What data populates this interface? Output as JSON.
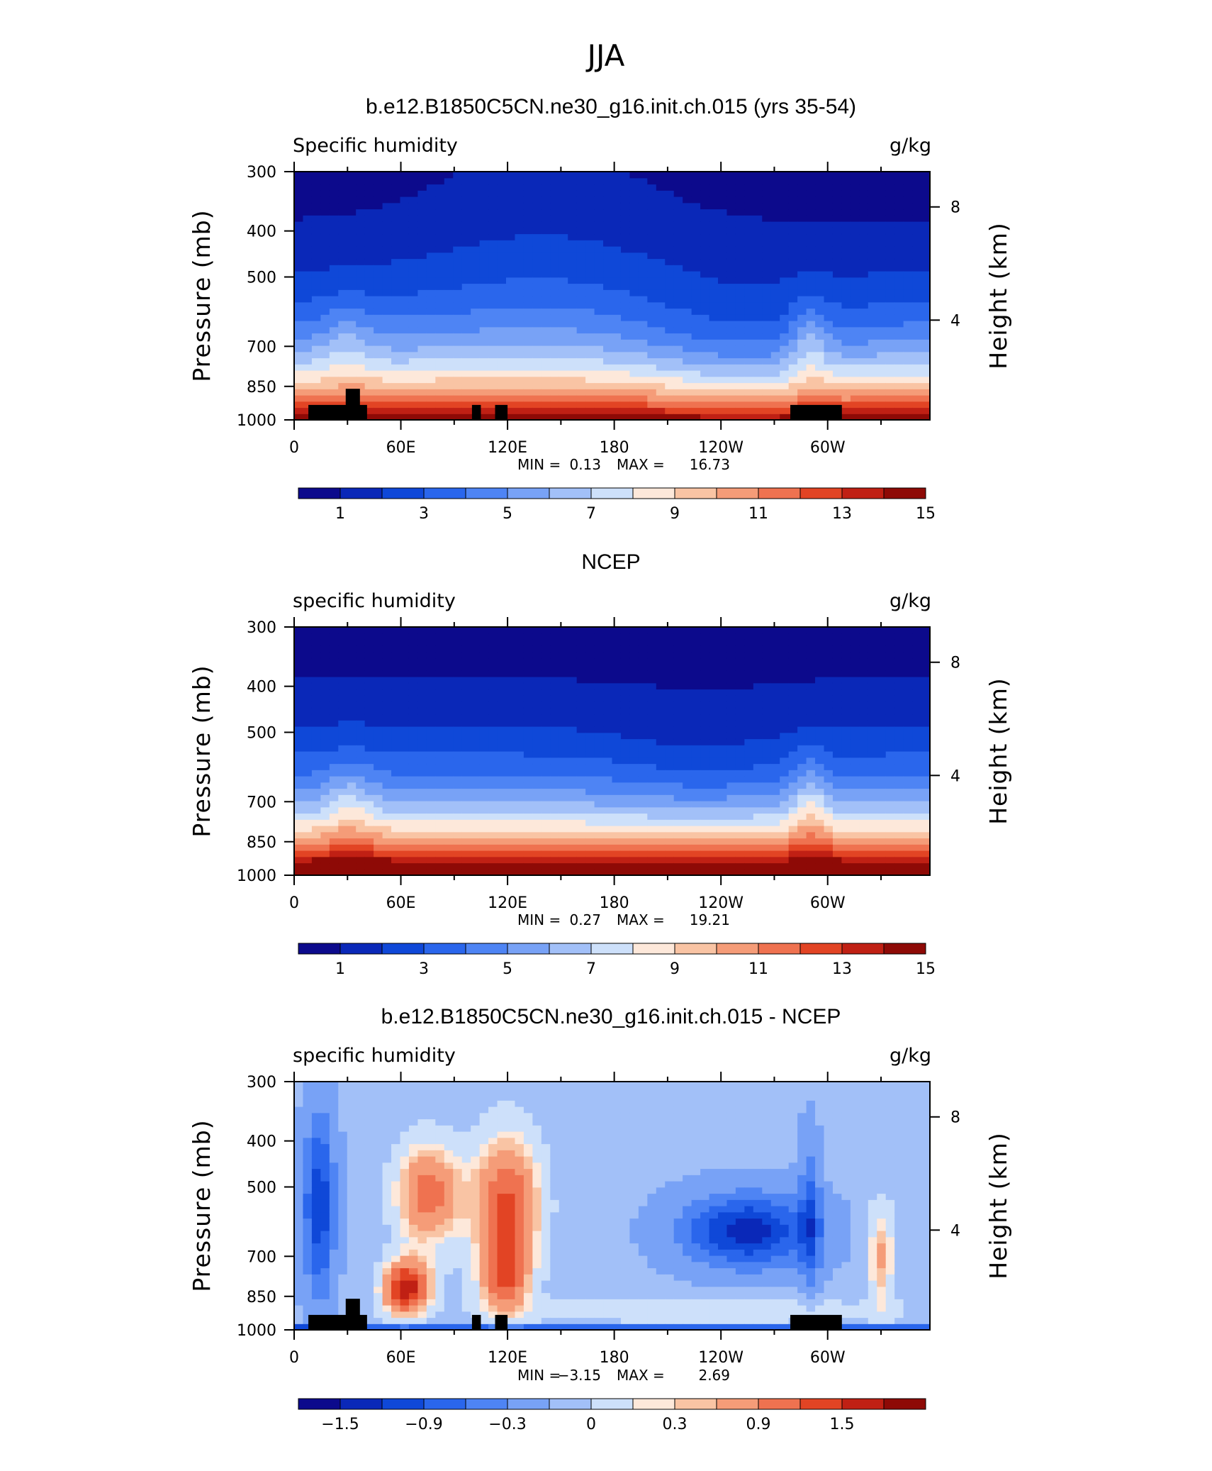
{
  "figure": {
    "title": "JJA"
  },
  "colormap": [
    "#0c0a8c",
    "#0a28b8",
    "#0f48d8",
    "#2a66ec",
    "#4e84f4",
    "#78a2f6",
    "#a2c0f8",
    "#cde0fa",
    "#fde8da",
    "#f9c4a4",
    "#f59c78",
    "#ef7250",
    "#e24424",
    "#c02014",
    "#8e0a06"
  ],
  "chart_data": [
    {
      "type": "heatmap",
      "title": "b.e12.B1850C5CN.ne30_g16.init.ch.015 (yrs 35-54)",
      "left_label": "Specific humidity",
      "right_label": "g/kg",
      "xlabel": "",
      "ylabel": "Pressure (mb)",
      "ylabel_right": "Height (km)",
      "x_ticks": [
        "0",
        "60E",
        "120E",
        "180",
        "120W",
        "60W"
      ],
      "x_tick_lon": [
        0,
        60,
        120,
        180,
        240,
        300
      ],
      "xlim": [
        0,
        357.5
      ],
      "y_ticks": [
        "300",
        "400",
        "500",
        "700",
        "850",
        "1000"
      ],
      "y_tick_p": [
        300,
        400,
        500,
        700,
        850,
        1000
      ],
      "ylim": [
        1000,
        300
      ],
      "y_scale": "log",
      "right_ticks": [
        "8",
        "4"
      ],
      "right_tick_km": [
        8,
        4
      ],
      "stat_min_label": "MIN =",
      "stat_min": "0.13",
      "stat_max_label": "MAX =",
      "stat_max": "16.73",
      "levels": [
        1,
        2,
        3,
        4,
        5,
        6,
        7,
        8,
        9,
        10,
        11,
        12,
        13,
        14,
        15
      ],
      "colorbar_labels": [
        "1",
        "3",
        "5",
        "7",
        "9",
        "11",
        "13",
        "15"
      ],
      "field": "model",
      "min": 0.13,
      "max": 16.73
    },
    {
      "type": "heatmap",
      "title": "NCEP",
      "left_label": "specific humidity",
      "right_label": "g/kg",
      "xlabel": "",
      "ylabel": "Pressure (mb)",
      "ylabel_right": "Height (km)",
      "x_ticks": [
        "0",
        "60E",
        "120E",
        "180",
        "120W",
        "60W"
      ],
      "x_tick_lon": [
        0,
        60,
        120,
        180,
        240,
        300
      ],
      "xlim": [
        0,
        357.5
      ],
      "y_ticks": [
        "300",
        "400",
        "500",
        "700",
        "850",
        "1000"
      ],
      "y_tick_p": [
        300,
        400,
        500,
        700,
        850,
        1000
      ],
      "ylim": [
        1000,
        300
      ],
      "y_scale": "log",
      "right_ticks": [
        "8",
        "4"
      ],
      "right_tick_km": [
        8,
        4
      ],
      "stat_min_label": "MIN =",
      "stat_min": "0.27",
      "stat_max_label": "MAX =",
      "stat_max": "19.21",
      "levels": [
        1,
        2,
        3,
        4,
        5,
        6,
        7,
        8,
        9,
        10,
        11,
        12,
        13,
        14,
        15
      ],
      "colorbar_labels": [
        "1",
        "3",
        "5",
        "7",
        "9",
        "11",
        "13",
        "15"
      ],
      "field": "obs",
      "min": 0.27,
      "max": 19.21
    },
    {
      "type": "heatmap",
      "title": "b.e12.B1850C5CN.ne30_g16.init.ch.015 - NCEP",
      "left_label": "specific humidity",
      "right_label": "g/kg",
      "xlabel": "",
      "ylabel": "Pressure (mb)",
      "ylabel_right": "Height (km)",
      "x_ticks": [
        "0",
        "60E",
        "120E",
        "180",
        "120W",
        "60W"
      ],
      "x_tick_lon": [
        0,
        60,
        120,
        180,
        240,
        300
      ],
      "xlim": [
        0,
        357.5
      ],
      "y_ticks": [
        "300",
        "400",
        "500",
        "700",
        "850",
        "1000"
      ],
      "y_tick_p": [
        300,
        400,
        500,
        700,
        850,
        1000
      ],
      "ylim": [
        1000,
        300
      ],
      "y_scale": "log",
      "right_ticks": [
        "8",
        "4"
      ],
      "right_tick_km": [
        8,
        4
      ],
      "stat_min_label": "MIN =",
      "stat_min": "−3.15",
      "stat_max_label": "MAX =",
      "stat_max": "2.69",
      "levels": [
        -2.1,
        -1.8,
        -1.5,
        -1.2,
        -0.9,
        -0.6,
        -0.3,
        0,
        0.15,
        0.3,
        0.6,
        0.9,
        1.2,
        1.5,
        1.8
      ],
      "colorbar_labels": [
        "−1.5",
        "−0.9",
        "−0.3",
        "0",
        "0.3",
        "0.9",
        "1.5"
      ],
      "field": "diff",
      "min": -3.15,
      "max": 2.69
    }
  ],
  "terrain": [
    {
      "lon0": 8,
      "lon1": 41,
      "p_top": 930
    },
    {
      "lon0": 29,
      "lon1": 37,
      "p_top": 860
    },
    {
      "lon0": 100,
      "lon1": 105,
      "p_top": 930
    },
    {
      "lon0": 113,
      "lon1": 120,
      "p_top": 930
    },
    {
      "lon0": 279,
      "lon1": 308,
      "p_top": 930
    }
  ]
}
